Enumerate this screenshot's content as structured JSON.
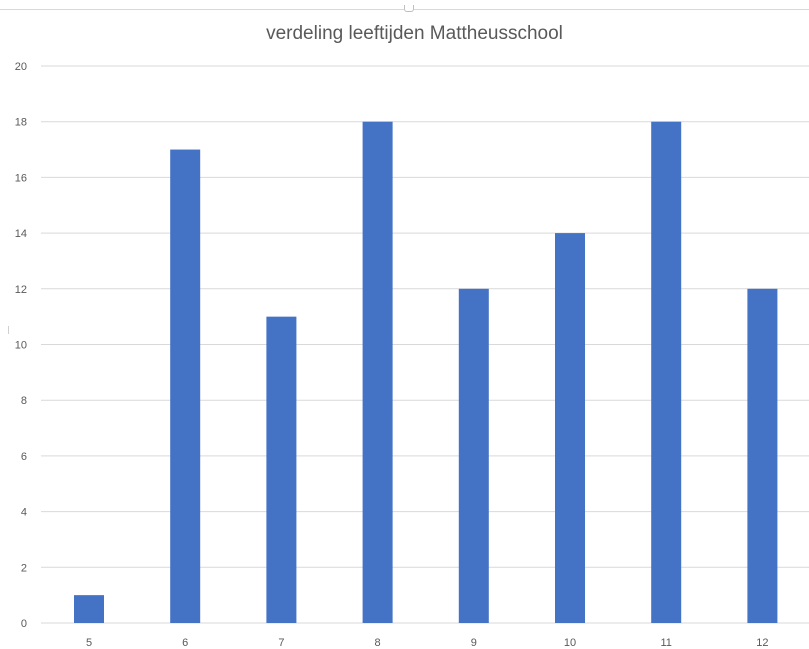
{
  "chart_data": {
    "type": "bar",
    "title": "verdeling leeftijden Mattheusschool",
    "xlabel": "",
    "ylabel": "",
    "categories": [
      "5",
      "6",
      "7",
      "8",
      "9",
      "10",
      "11",
      "12"
    ],
    "values": [
      1,
      17,
      11,
      18,
      12,
      14,
      18,
      12
    ],
    "ylim": [
      0,
      20
    ],
    "yticks": [
      "0",
      "2",
      "4",
      "6",
      "8",
      "10",
      "12",
      "14",
      "16",
      "18",
      "20"
    ],
    "grid": true,
    "legend": "none",
    "bar_color": "#4472c4",
    "grid_color": "#d9d9d9"
  }
}
